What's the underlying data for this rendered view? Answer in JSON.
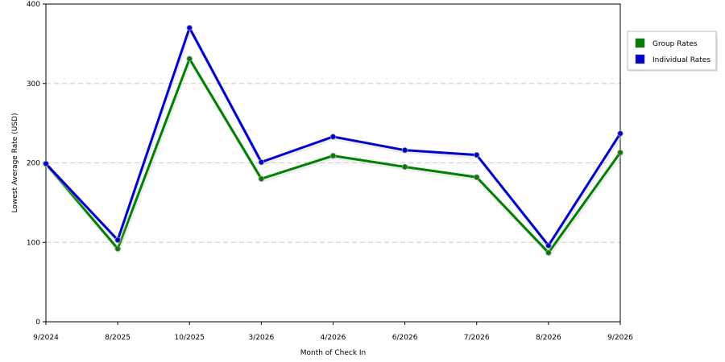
{
  "chart_data": {
    "type": "line",
    "title": "",
    "xlabel": "Month of Check In",
    "ylabel": "Lowest Average Rate (USD)",
    "categories": [
      "9/2024",
      "8/2025",
      "10/2025",
      "3/2026",
      "4/2026",
      "6/2026",
      "7/2026",
      "8/2026",
      "9/2026"
    ],
    "ylim": [
      0,
      400
    ],
    "yticks": [
      0,
      100,
      200,
      300,
      400
    ],
    "grid": "horizontal-dashed",
    "legend_position": "right",
    "series": [
      {
        "name": "Group Rates",
        "color": "#008000",
        "values": [
          199,
          92,
          331,
          180,
          209,
          195,
          182,
          87,
          213
        ]
      },
      {
        "name": "Individual Rates",
        "color": "#0000cc",
        "values": [
          199,
          103,
          370,
          201,
          233,
          216,
          210,
          96,
          237
        ]
      }
    ]
  }
}
